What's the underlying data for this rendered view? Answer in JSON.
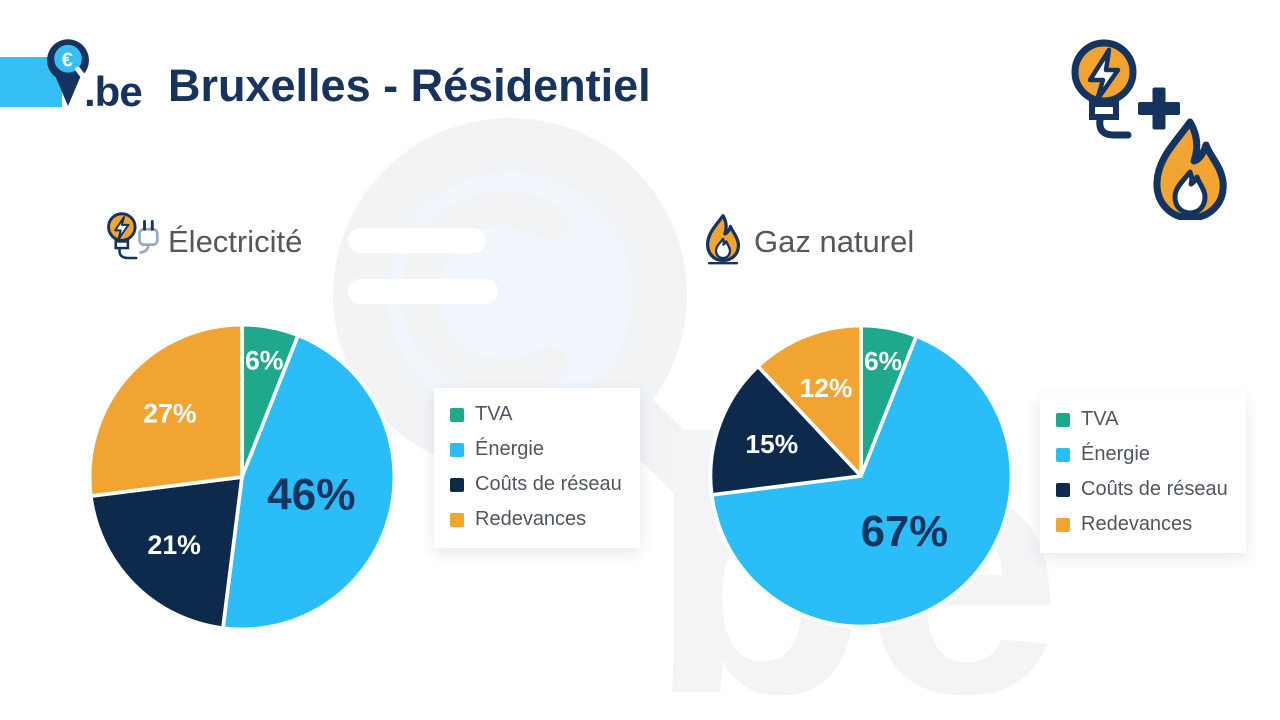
{
  "header": {
    "logo_text": ".be",
    "logo_euro": "€",
    "title": "Bruxelles - Résidentiel"
  },
  "decor": {
    "watermark_text": "be"
  },
  "colors": {
    "navy": "#14335E",
    "slice_navy": "#0D2A4D",
    "blue": "#2BBDF7",
    "teal": "#1FA98C",
    "orange": "#F2A432",
    "title_navy": "#17335E",
    "section_gray": "#54575C",
    "watermark_gray": "#F1F3F5"
  },
  "sections": [
    {
      "id": "electricity",
      "title": "Électricité"
    },
    {
      "id": "gas",
      "title": "Gaz naturel"
    }
  ],
  "chart_data": [
    {
      "type": "pie",
      "title": "Électricité",
      "categories": [
        "TVA",
        "Énergie",
        "Coûts de réseau",
        "Redevances"
      ],
      "values": [
        6,
        46,
        21,
        27
      ],
      "labels": [
        "6%",
        "46%",
        "21%",
        "27%"
      ],
      "colors": [
        "#1FA98C",
        "#2BBDF7",
        "#0D2A4D",
        "#F2A432"
      ],
      "big_label_color": "#15355F",
      "start_angle_deg": 0,
      "direction": "clockwise",
      "legend_position": "right"
    },
    {
      "type": "pie",
      "title": "Gaz naturel",
      "categories": [
        "TVA",
        "Énergie",
        "Coûts de réseau",
        "Redevances"
      ],
      "values": [
        6,
        67,
        15,
        12
      ],
      "labels": [
        "6%",
        "67%",
        "15%",
        "12%"
      ],
      "colors": [
        "#1FA98C",
        "#2BBDF7",
        "#0D2A4D",
        "#F2A432"
      ],
      "big_label_color": "#15355F",
      "start_angle_deg": 0,
      "direction": "clockwise",
      "legend_position": "right"
    }
  ]
}
